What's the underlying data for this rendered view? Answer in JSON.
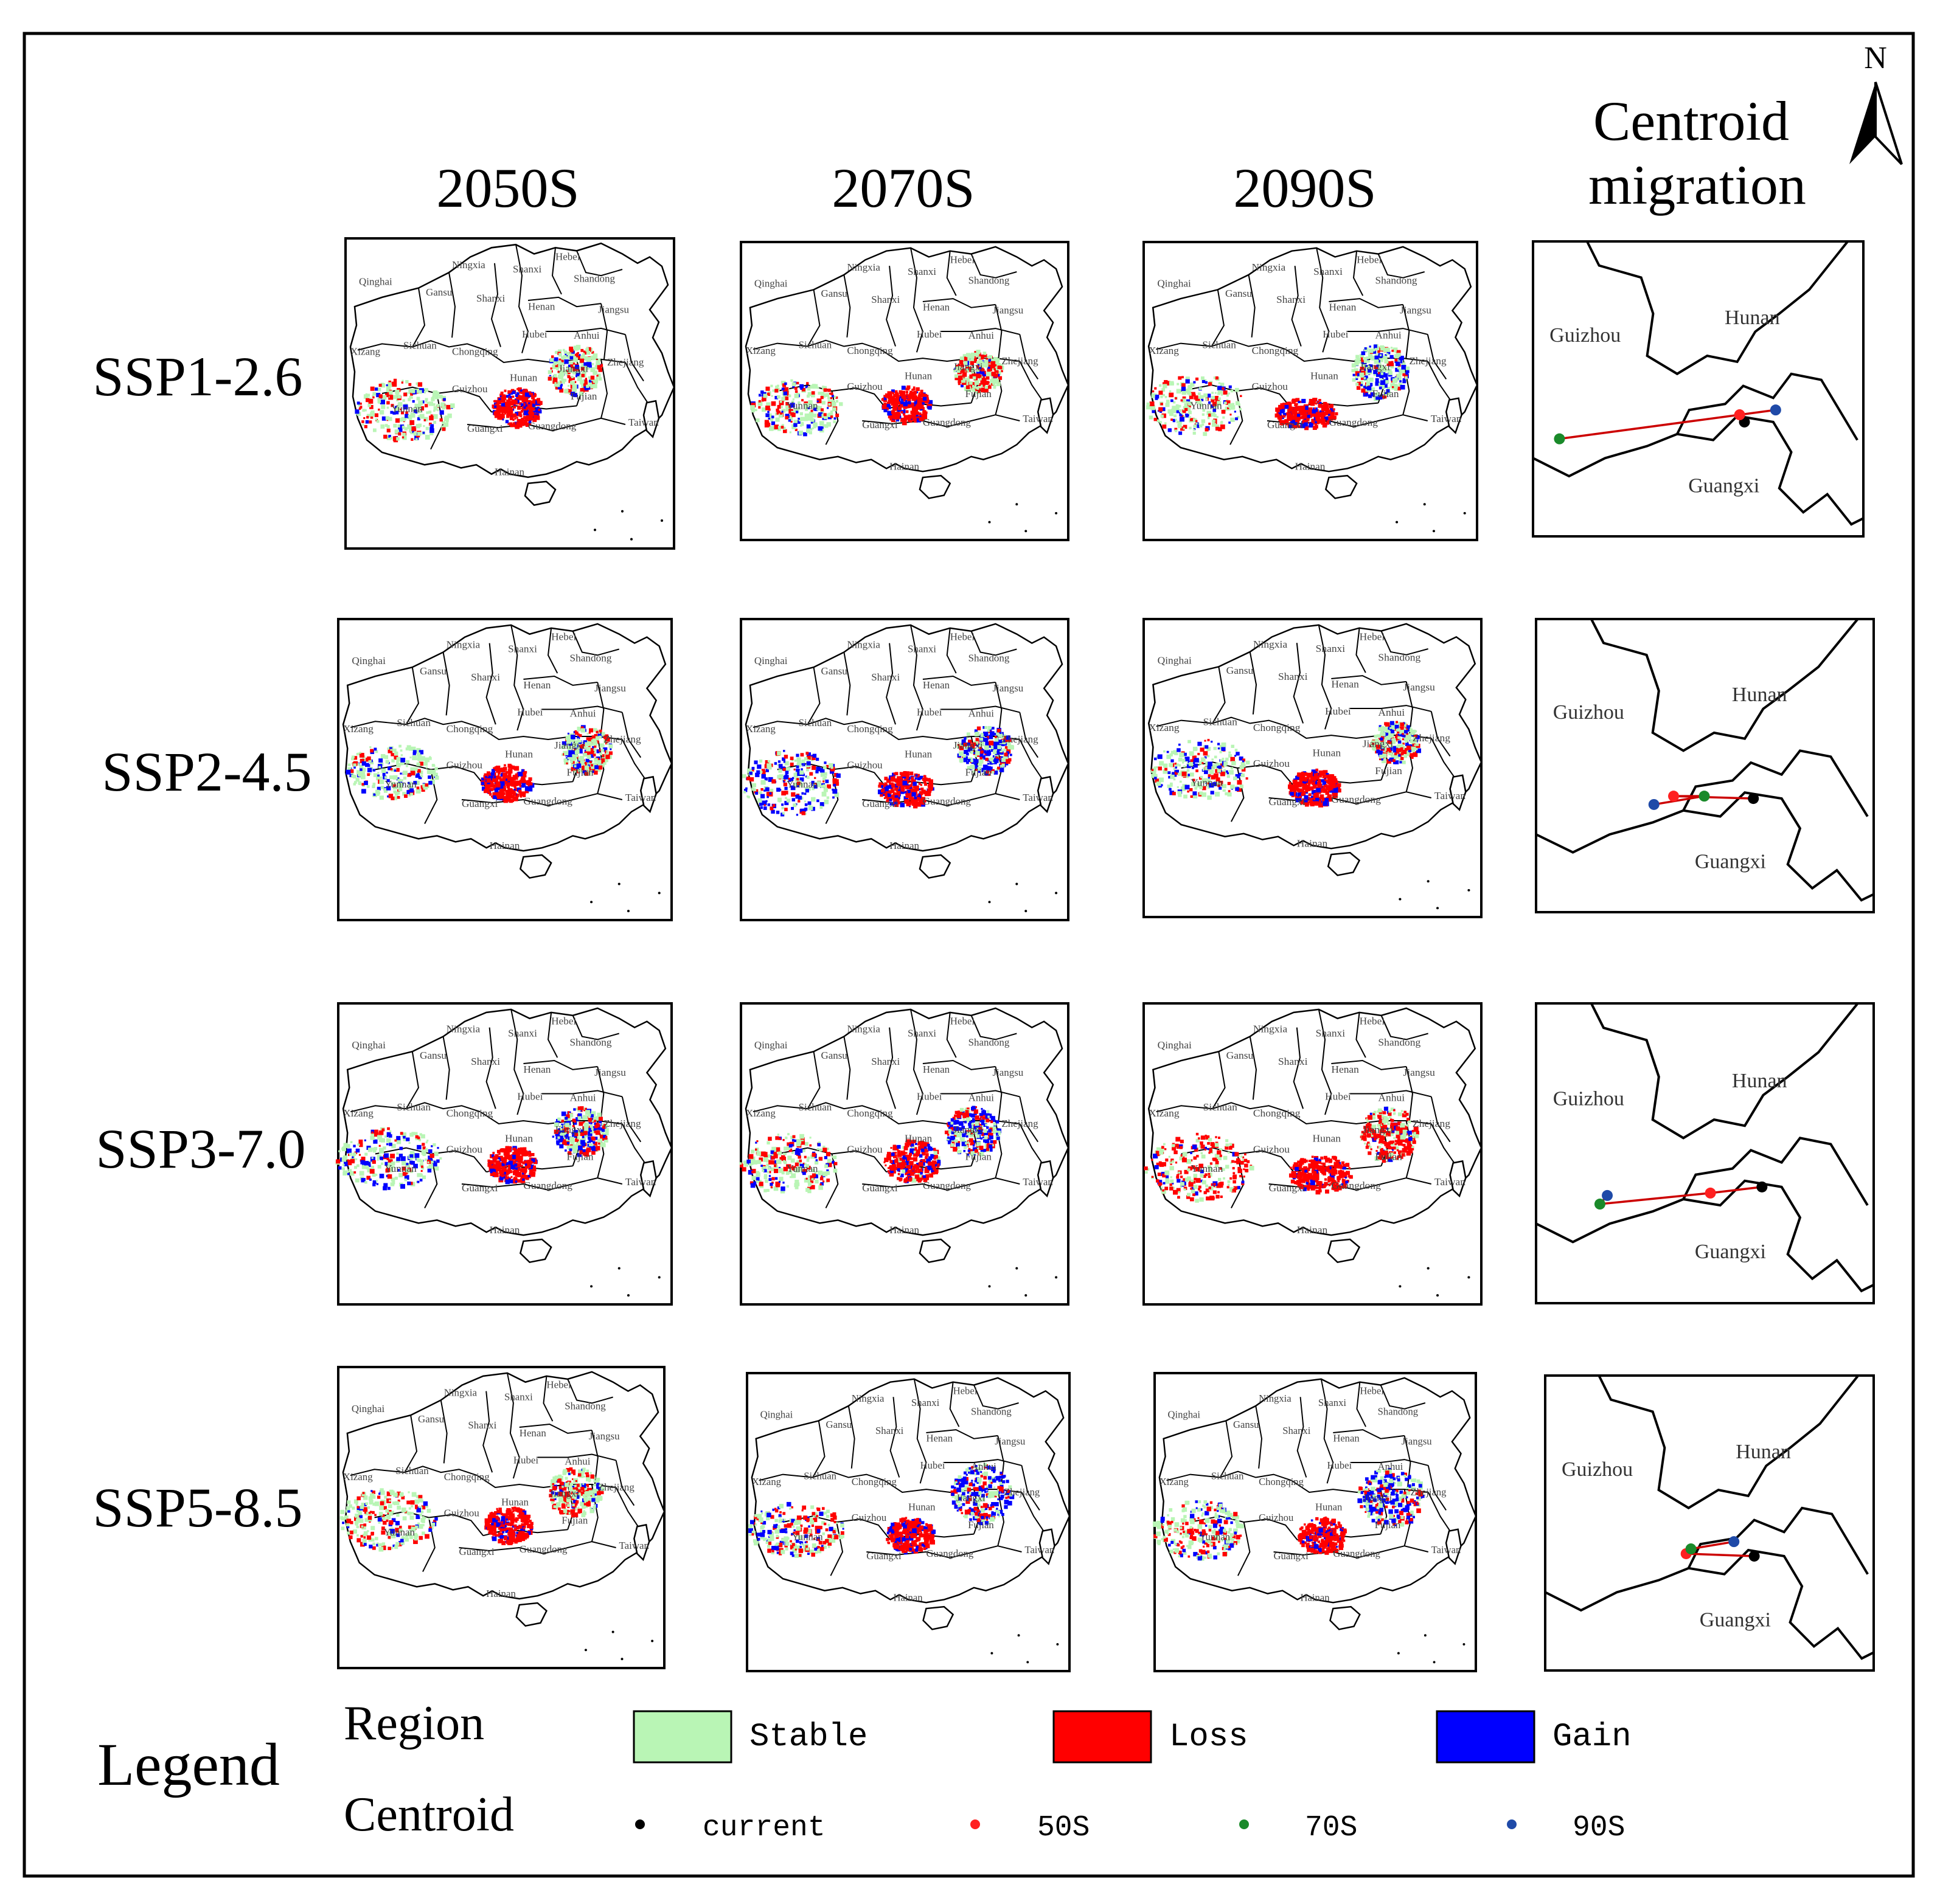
{
  "columns": [
    "2050S",
    "2070S",
    "2090S"
  ],
  "centroid_title": [
    "Centroid",
    "migration"
  ],
  "north_label": "N",
  "scenarios": [
    "SSP1-2.6",
    "SSP2-4.5",
    "SSP3-7.0",
    "SSP5-8.5"
  ],
  "province_labels": {
    "qinghai": "Qinghai",
    "gansu": "Gansu",
    "ningxia": "Ningxia",
    "shanxi_n": "Shanxi",
    "hebei": "Hebei",
    "shandong": "Shandong",
    "shaanxi": "Shanxi",
    "henan": "Henan",
    "jiangsu": "Jiangsu",
    "anhui": "Anhui",
    "hubei": "Hubei",
    "sichuan": "Sichuan",
    "xizang": "Xizang",
    "chongqing": "Chongqing",
    "zhejiang": "Zhejiang",
    "jiangxi": "Jiangxi",
    "hunan": "Hunan",
    "guizhou": "Guizhou",
    "yunnan": "Yunnan",
    "fujian": "Fujian",
    "guangxi": "Guangxi",
    "guangdong": "Guangdong",
    "taiwan": "Taiwan",
    "hainan": "Hainan"
  },
  "inset_labels": {
    "guizhou": "Guizhou",
    "hunan": "Hunan",
    "guangxi": "Guangxi"
  },
  "legend": {
    "title": "Legend",
    "region_label": "Region",
    "centroid_label": "Centroid",
    "region_items": [
      {
        "label": "Stable",
        "color": "#b9f5b5"
      },
      {
        "label": "Loss",
        "color": "#ff0000"
      },
      {
        "label": "Gain",
        "color": "#0000ff"
      }
    ],
    "centroid_items": [
      {
        "label": "current",
        "color": "#000000"
      },
      {
        "label": "50S",
        "color": "#ff2020"
      },
      {
        "label": "70S",
        "color": "#1a8a2a"
      },
      {
        "label": "90S",
        "color": "#1f4aa8"
      }
    ]
  },
  "colors": {
    "stable": "#b9f5b5",
    "loss": "#ff0000",
    "gain": "#0000ff",
    "line": "#cc0000"
  }
}
